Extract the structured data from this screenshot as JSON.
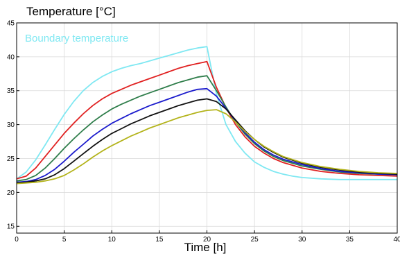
{
  "chart_data": {
    "type": "line",
    "title": "Temperature [°C]",
    "xlabel": "Time [h]",
    "ylabel": "",
    "xlim": [
      0,
      40
    ],
    "ylim": [
      14,
      45
    ],
    "xticks": [
      0,
      5,
      10,
      15,
      20,
      25,
      30,
      35,
      40
    ],
    "yticks": [
      15,
      20,
      25,
      30,
      35,
      40,
      45
    ],
    "grid": true,
    "annotations": [
      {
        "text": "Boundary temperature",
        "color": "#7fe8f2"
      }
    ],
    "series": [
      {
        "color": "#7fe8f2",
        "x": [
          0,
          1,
          2,
          3,
          4,
          5,
          6,
          7,
          8,
          9,
          10,
          11,
          12,
          13,
          14,
          15,
          16,
          17,
          18,
          19,
          20,
          21,
          22,
          23,
          24,
          25,
          26,
          27,
          28,
          29,
          30,
          32,
          34,
          36,
          38,
          40
        ],
        "y": [
          22.0,
          23.0,
          24.8,
          27.0,
          29.3,
          31.5,
          33.4,
          35.0,
          36.2,
          37.1,
          37.8,
          38.3,
          38.7,
          39.0,
          39.4,
          39.8,
          40.2,
          40.6,
          41.0,
          41.3,
          41.5,
          34.5,
          30.0,
          27.5,
          25.8,
          24.5,
          23.7,
          23.1,
          22.7,
          22.4,
          22.2,
          22.0,
          21.9,
          21.9,
          21.9,
          21.9
        ]
      },
      {
        "color": "#e02020",
        "x": [
          0,
          1,
          2,
          3,
          4,
          5,
          6,
          7,
          8,
          9,
          10,
          11,
          12,
          13,
          14,
          15,
          16,
          17,
          18,
          19,
          20,
          21,
          22,
          23,
          24,
          25,
          26,
          27,
          28,
          30,
          32,
          34,
          36,
          38,
          40
        ],
        "y": [
          22.0,
          22.4,
          23.6,
          25.3,
          27.0,
          28.7,
          30.2,
          31.6,
          32.8,
          33.8,
          34.6,
          35.2,
          35.8,
          36.3,
          36.8,
          37.3,
          37.8,
          38.3,
          38.7,
          39.0,
          39.3,
          35.5,
          32.5,
          30.0,
          28.2,
          26.8,
          25.8,
          25.0,
          24.4,
          23.6,
          23.1,
          22.8,
          22.6,
          22.5,
          22.4
        ]
      },
      {
        "color": "#2e7d4a",
        "x": [
          0,
          1,
          2,
          3,
          4,
          5,
          6,
          7,
          8,
          9,
          10,
          11,
          12,
          13,
          14,
          15,
          16,
          17,
          18,
          19,
          20,
          21,
          22,
          23,
          24,
          25,
          26,
          27,
          28,
          30,
          32,
          34,
          36,
          38,
          40
        ],
        "y": [
          21.7,
          21.9,
          22.5,
          23.6,
          25.0,
          26.5,
          27.9,
          29.2,
          30.4,
          31.4,
          32.3,
          33.0,
          33.6,
          34.2,
          34.7,
          35.2,
          35.7,
          36.2,
          36.6,
          37.0,
          37.2,
          35.0,
          32.6,
          30.4,
          28.6,
          27.2,
          26.1,
          25.3,
          24.7,
          23.9,
          23.4,
          23.0,
          22.8,
          22.7,
          22.6
        ]
      },
      {
        "color": "#1a1acc",
        "x": [
          0,
          1,
          2,
          3,
          4,
          5,
          6,
          7,
          8,
          9,
          10,
          11,
          12,
          13,
          14,
          15,
          16,
          17,
          18,
          19,
          20,
          21,
          22,
          23,
          24,
          25,
          26,
          27,
          28,
          30,
          32,
          34,
          36,
          38,
          40
        ],
        "y": [
          21.5,
          21.6,
          21.9,
          22.5,
          23.4,
          24.6,
          25.9,
          27.1,
          28.3,
          29.3,
          30.2,
          30.9,
          31.6,
          32.2,
          32.8,
          33.3,
          33.8,
          34.3,
          34.8,
          35.2,
          35.3,
          34.2,
          32.4,
          30.5,
          28.8,
          27.4,
          26.3,
          25.5,
          24.9,
          24.1,
          23.5,
          23.1,
          22.9,
          22.7,
          22.6
        ]
      },
      {
        "color": "#111111",
        "x": [
          0,
          1,
          2,
          3,
          4,
          5,
          6,
          7,
          8,
          9,
          10,
          11,
          12,
          13,
          14,
          15,
          16,
          17,
          18,
          19,
          20,
          21,
          22,
          23,
          24,
          25,
          26,
          27,
          28,
          30,
          32,
          34,
          36,
          38,
          40
        ],
        "y": [
          21.4,
          21.5,
          21.7,
          22.0,
          22.6,
          23.5,
          24.6,
          25.7,
          26.8,
          27.8,
          28.7,
          29.4,
          30.1,
          30.7,
          31.3,
          31.8,
          32.3,
          32.8,
          33.2,
          33.6,
          33.8,
          33.4,
          32.3,
          30.7,
          29.1,
          27.8,
          26.7,
          25.9,
          25.2,
          24.3,
          23.7,
          23.3,
          23.0,
          22.8,
          22.7
        ]
      },
      {
        "color": "#b3b31a",
        "x": [
          0,
          1,
          2,
          3,
          4,
          5,
          6,
          7,
          8,
          9,
          10,
          11,
          12,
          13,
          14,
          15,
          16,
          17,
          18,
          19,
          20,
          21,
          22,
          23,
          24,
          25,
          26,
          27,
          28,
          30,
          32,
          34,
          36,
          38,
          40
        ],
        "y": [
          21.3,
          21.4,
          21.5,
          21.7,
          22.0,
          22.5,
          23.3,
          24.2,
          25.2,
          26.1,
          26.9,
          27.6,
          28.3,
          28.9,
          29.5,
          30.0,
          30.5,
          31.0,
          31.4,
          31.8,
          32.1,
          32.2,
          31.6,
          30.4,
          29.0,
          27.8,
          26.8,
          26.0,
          25.3,
          24.4,
          23.8,
          23.4,
          23.1,
          22.9,
          22.8
        ]
      }
    ]
  }
}
